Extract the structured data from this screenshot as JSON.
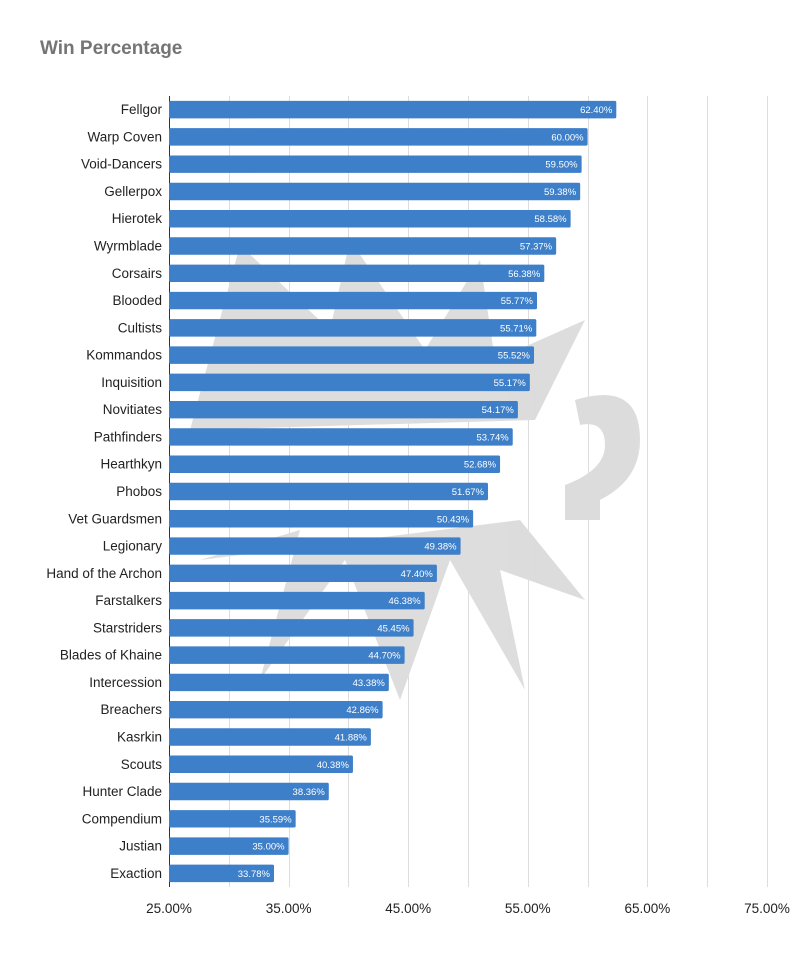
{
  "chart_data": {
    "type": "bar",
    "orientation": "horizontal",
    "title": "Win Percentage",
    "xlabel": "",
    "ylabel": "",
    "xlim": [
      25,
      75
    ],
    "ticks": [
      25,
      35,
      45,
      55,
      65,
      75
    ],
    "tick_labels": [
      "25.00%",
      "35.00%",
      "45.00%",
      "55.00%",
      "65.00%",
      "75.00%"
    ],
    "grid": true,
    "legend": "none",
    "bar_color": "#3d7fc9",
    "categories": [
      "Fellgor",
      "Warp Coven",
      "Void-Dancers",
      "Gellerpox",
      "Hierotek",
      "Wyrmblade",
      "Corsairs",
      "Blooded",
      "Cultists",
      "Kommandos",
      "Inquisition",
      "Novitiates",
      "Pathfinders",
      "Hearthkyn",
      "Phobos",
      "Vet Guardsmen",
      "Legionary",
      "Hand of the Archon",
      "Farstalkers",
      "Starstriders",
      "Blades of Khaine",
      "Intercession",
      "Breachers",
      "Kasrkin",
      "Scouts",
      "Hunter Clade",
      "Compendium",
      "Justian",
      "Exaction"
    ],
    "values": [
      62.4,
      60.0,
      59.5,
      59.38,
      58.58,
      57.37,
      56.38,
      55.77,
      55.71,
      55.52,
      55.17,
      54.17,
      53.74,
      52.68,
      51.67,
      50.43,
      49.38,
      47.4,
      46.38,
      45.45,
      44.7,
      43.38,
      42.86,
      41.88,
      40.38,
      38.36,
      35.59,
      35.0,
      33.78
    ],
    "value_labels": [
      "62.40%",
      "60.00%",
      "59.50%",
      "59.38%",
      "58.58%",
      "57.37%",
      "56.38%",
      "55.77%",
      "55.71%",
      "55.52%",
      "55.17%",
      "54.17%",
      "53.74%",
      "52.68%",
      "51.67%",
      "50.43%",
      "49.38%",
      "47.40%",
      "46.38%",
      "45.45%",
      "44.70%",
      "43.38%",
      "42.86%",
      "41.88%",
      "40.38%",
      "38.36%",
      "35.59%",
      "35.00%",
      "33.78%"
    ]
  }
}
